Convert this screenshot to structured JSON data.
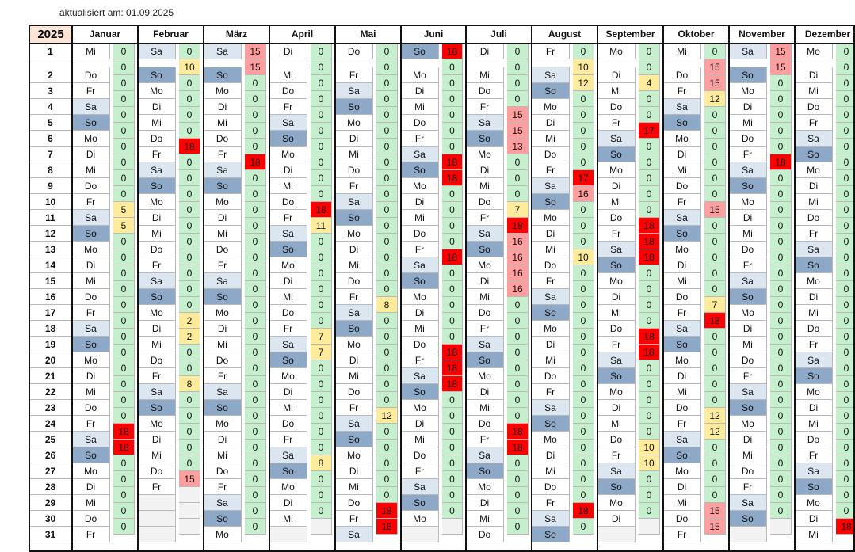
{
  "updated_label": "aktualisiert am: 01.09.2025",
  "year": "2025",
  "months": [
    {
      "name": "Januar",
      "days": [
        "Mi",
        "Do",
        "Fr",
        "Sa",
        "So",
        "Mo",
        "Di",
        "Mi",
        "Do",
        "Fr",
        "Sa",
        "So",
        "Mo",
        "Di",
        "Mi",
        "Do",
        "Fr",
        "Sa",
        "So",
        "Mo",
        "Di",
        "Mi",
        "Do",
        "Fr",
        "Sa",
        "So",
        "Mo",
        "Di",
        "Mi",
        "Do",
        "Fr"
      ],
      "values": [
        0,
        0,
        0,
        0,
        0,
        0,
        0,
        0,
        0,
        0,
        5,
        5,
        0,
        0,
        0,
        0,
        0,
        0,
        0,
        0,
        0,
        0,
        0,
        0,
        18,
        18,
        0,
        0,
        0,
        0,
        0
      ]
    },
    {
      "name": "Februar",
      "days": [
        "Sa",
        "So",
        "Mo",
        "Di",
        "Mi",
        "Do",
        "Fr",
        "Sa",
        "So",
        "Mo",
        "Di",
        "Mi",
        "Do",
        "Fr",
        "Sa",
        "So",
        "Mo",
        "Di",
        "Mi",
        "Do",
        "Fr",
        "Sa",
        "So",
        "Mo",
        "Di",
        "Mi",
        "Do",
        "Fr"
      ],
      "values": [
        0,
        10,
        0,
        0,
        0,
        0,
        18,
        0,
        0,
        0,
        0,
        0,
        0,
        0,
        0,
        0,
        0,
        2,
        2,
        0,
        0,
        8,
        0,
        0,
        0,
        0,
        0,
        15
      ]
    },
    {
      "name": "März",
      "days": [
        "Sa",
        "So",
        "Mo",
        "Di",
        "Mi",
        "Do",
        "Fr",
        "Sa",
        "So",
        "Mo",
        "Di",
        "Mi",
        "Do",
        "Fr",
        "Sa",
        "So",
        "Mo",
        "Di",
        "Mi",
        "Do",
        "Fr",
        "Sa",
        "So",
        "Mo",
        "Di",
        "Mi",
        "Do",
        "Fr",
        "Sa",
        "So",
        "Mo"
      ],
      "values": [
        15,
        15,
        0,
        0,
        0,
        0,
        0,
        18,
        0,
        0,
        0,
        0,
        0,
        0,
        0,
        0,
        0,
        0,
        0,
        0,
        0,
        0,
        0,
        0,
        0,
        0,
        0,
        0,
        0,
        0,
        0
      ]
    },
    {
      "name": "April",
      "days": [
        "Di",
        "Mi",
        "Do",
        "Fr",
        "Sa",
        "So",
        "Mo",
        "Di",
        "Mi",
        "Do",
        "Fr",
        "Sa",
        "So",
        "Mo",
        "Di",
        "Mi",
        "Do",
        "Fr",
        "Sa",
        "So",
        "Mo",
        "Di",
        "Mi",
        "Do",
        "Fr",
        "Sa",
        "So",
        "Mo",
        "Di",
        "Mi"
      ],
      "values": [
        0,
        0,
        0,
        0,
        0,
        0,
        0,
        0,
        0,
        0,
        18,
        11,
        0,
        0,
        0,
        0,
        0,
        0,
        7,
        7,
        0,
        0,
        0,
        0,
        0,
        0,
        8,
        0,
        0,
        0
      ]
    },
    {
      "name": "Mai",
      "days": [
        "Do",
        "Fr",
        "Sa",
        "So",
        "Mo",
        "Di",
        "Mi",
        "Do",
        "Fr",
        "Sa",
        "So",
        "Mo",
        "Di",
        "Mi",
        "Do",
        "Fr",
        "Sa",
        "So",
        "Mo",
        "Di",
        "Mi",
        "Do",
        "Fr",
        "Sa",
        "So",
        "Mo",
        "Di",
        "Mi",
        "Do",
        "Fr",
        "Sa"
      ],
      "values": [
        0,
        0,
        0,
        0,
        0,
        0,
        0,
        0,
        0,
        0,
        0,
        0,
        0,
        0,
        0,
        0,
        8,
        0,
        0,
        0,
        0,
        0,
        0,
        12,
        0,
        0,
        0,
        0,
        0,
        18,
        18
      ]
    },
    {
      "name": "Juni",
      "days": [
        "So",
        "Mo",
        "Di",
        "Mi",
        "Do",
        "Fr",
        "Sa",
        "So",
        "Mo",
        "Di",
        "Mi",
        "Do",
        "Fr",
        "Sa",
        "So",
        "Mo",
        "Di",
        "Mi",
        "Do",
        "Fr",
        "Sa",
        "So",
        "Mo",
        "Di",
        "Mi",
        "Do",
        "Fr",
        "Sa",
        "So",
        "Mo"
      ],
      "values": [
        18,
        0,
        0,
        0,
        0,
        0,
        0,
        18,
        18,
        0,
        0,
        0,
        0,
        18,
        0,
        0,
        0,
        0,
        0,
        18,
        18,
        18,
        0,
        0,
        0,
        0,
        0,
        0,
        0,
        0
      ]
    },
    {
      "name": "Juli",
      "days": [
        "Di",
        "Mi",
        "Do",
        "Fr",
        "Sa",
        "So",
        "Mo",
        "Di",
        "Mi",
        "Do",
        "Fr",
        "Sa",
        "So",
        "Mo",
        "Di",
        "Mi",
        "Do",
        "Fr",
        "Sa",
        "So",
        "Mo",
        "Di",
        "Mi",
        "Do",
        "Fr",
        "Sa",
        "So",
        "Mo",
        "Di",
        "Mi",
        "Do"
      ],
      "values": [
        0,
        0,
        0,
        0,
        15,
        15,
        13,
        0,
        0,
        0,
        7,
        18,
        16,
        16,
        16,
        16,
        0,
        0,
        0,
        0,
        0,
        0,
        0,
        0,
        18,
        18,
        0,
        0,
        0,
        0,
        0
      ]
    },
    {
      "name": "August",
      "days": [
        "Fr",
        "Sa",
        "So",
        "Mo",
        "Di",
        "Mi",
        "Do",
        "Fr",
        "Sa",
        "So",
        "Mo",
        "Di",
        "Mi",
        "Do",
        "Fr",
        "Sa",
        "So",
        "Mo",
        "Di",
        "Mi",
        "Do",
        "Fr",
        "Sa",
        "So",
        "Mo",
        "Di",
        "Mi",
        "Do",
        "Fr",
        "Sa",
        "So"
      ],
      "values": [
        0,
        10,
        12,
        0,
        0,
        0,
        0,
        0,
        17,
        16,
        0,
        0,
        0,
        10,
        0,
        0,
        0,
        0,
        0,
        0,
        0,
        0,
        0,
        0,
        0,
        0,
        0,
        0,
        0,
        18,
        0
      ]
    },
    {
      "name": "September",
      "days": [
        "Mo",
        "Di",
        "Mi",
        "Do",
        "Fr",
        "Sa",
        "So",
        "Mo",
        "Di",
        "Mi",
        "Do",
        "Fr",
        "Sa",
        "So",
        "Mo",
        "Di",
        "Mi",
        "Do",
        "Fr",
        "Sa",
        "So",
        "Mo",
        "Di",
        "Mi",
        "Do",
        "Fr",
        "Sa",
        "So",
        "Mo",
        "Di"
      ],
      "values": [
        0,
        0,
        4,
        0,
        0,
        17,
        0,
        0,
        0,
        0,
        0,
        18,
        18,
        18,
        0,
        0,
        0,
        0,
        18,
        18,
        0,
        0,
        0,
        0,
        0,
        10,
        10,
        0,
        0,
        0
      ]
    },
    {
      "name": "Oktober",
      "days": [
        "Mi",
        "Do",
        "Fr",
        "Sa",
        "So",
        "Mo",
        "Di",
        "Mi",
        "Do",
        "Fr",
        "Sa",
        "So",
        "Mo",
        "Di",
        "Mi",
        "Do",
        "Fr",
        "Sa",
        "So",
        "Mo",
        "Di",
        "Mi",
        "Do",
        "Fr",
        "Sa",
        "So",
        "Mo",
        "Di",
        "Mi",
        "Do",
        "Fr"
      ],
      "values": [
        0,
        15,
        15,
        12,
        0,
        0,
        0,
        0,
        0,
        0,
        15,
        0,
        0,
        0,
        0,
        0,
        7,
        18,
        0,
        0,
        0,
        0,
        0,
        12,
        12,
        0,
        0,
        0,
        0,
        15,
        15
      ]
    },
    {
      "name": "November",
      "days": [
        "Sa",
        "So",
        "Mo",
        "Di",
        "Mi",
        "Do",
        "Fr",
        "Sa",
        "So",
        "Mo",
        "Di",
        "Mi",
        "Do",
        "Fr",
        "Sa",
        "So",
        "Mo",
        "Di",
        "Mi",
        "Do",
        "Fr",
        "Sa",
        "So",
        "Mo",
        "Di",
        "Mi",
        "Do",
        "Fr",
        "Sa",
        "So"
      ],
      "values": [
        15,
        15,
        0,
        0,
        0,
        0,
        0,
        18,
        0,
        0,
        0,
        0,
        0,
        0,
        0,
        0,
        0,
        0,
        0,
        0,
        0,
        0,
        0,
        0,
        0,
        0,
        0,
        0,
        0,
        0
      ]
    },
    {
      "name": "Dezember",
      "days": [
        "Mo",
        "Di",
        "Mi",
        "Do",
        "Fr",
        "Sa",
        "So",
        "Mo",
        "Di",
        "Mi",
        "Do",
        "Fr",
        "Sa",
        "So",
        "Mo",
        "Di",
        "Mi",
        "Do",
        "Fr",
        "Sa",
        "So",
        "Mo",
        "Di",
        "Mi",
        "Do",
        "Fr",
        "Sa",
        "So",
        "Mo",
        "Di",
        "Mi"
      ],
      "values": [
        0,
        0,
        0,
        0,
        0,
        0,
        0,
        0,
        0,
        0,
        0,
        0,
        0,
        0,
        0,
        0,
        0,
        0,
        0,
        0,
        0,
        0,
        0,
        0,
        0,
        0,
        0,
        0,
        0,
        0,
        18
      ]
    }
  ],
  "colors": {
    "zero": "#c6efce",
    "low": "#ffeb9c",
    "mid": "#ff9e9e",
    "high": "#ff0000",
    "weekday": "#ffffff",
    "saturday": "#dce6f1",
    "sunday": "#8ea9c8"
  }
}
